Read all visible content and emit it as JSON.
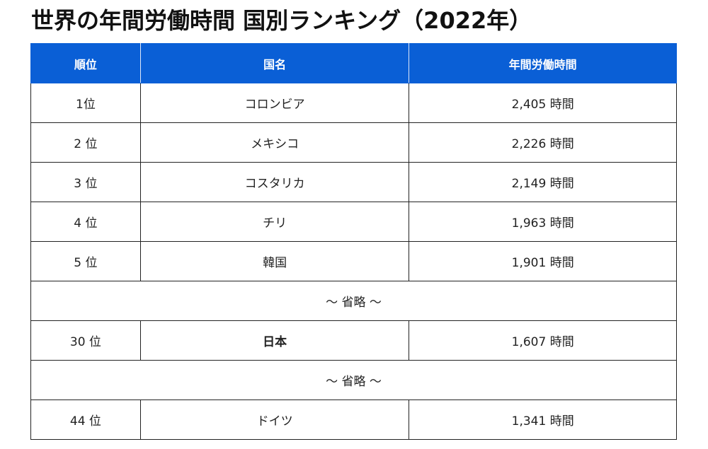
{
  "title": "世界の年間労働時間 国別ランキング（2022年）",
  "headers": [
    "順位",
    "国名",
    "年間労働時間"
  ],
  "rows": [
    {
      "rank": "1位",
      "country": "コロンビア",
      "hours": "2,405 時間"
    },
    {
      "rank": "2 位",
      "country": "メキシコ",
      "hours": "2,226 時間"
    },
    {
      "rank": "3 位",
      "country": "コスタリカ",
      "hours": "2,149 時間"
    },
    {
      "rank": "4 位",
      "country": "チリ",
      "hours": "1,963 時間"
    },
    {
      "rank": "5 位",
      "country": "韓国",
      "hours": "1,901 時間"
    },
    {
      "rank": "30 位",
      "country": "日本",
      "hours": "1,607 時間"
    },
    {
      "rank": "44 位",
      "country": "ドイツ",
      "hours": "1,341 時間"
    }
  ],
  "omitted": "～ 省略 ～"
}
